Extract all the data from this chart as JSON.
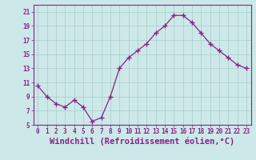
{
  "x": [
    0,
    1,
    2,
    3,
    4,
    5,
    6,
    7,
    8,
    9,
    10,
    11,
    12,
    13,
    14,
    15,
    16,
    17,
    18,
    19,
    20,
    21,
    22,
    23
  ],
  "y": [
    10.5,
    9.0,
    8.0,
    7.5,
    8.5,
    7.5,
    5.5,
    6.0,
    9.0,
    13.0,
    14.5,
    15.5,
    16.5,
    18.0,
    19.0,
    20.5,
    20.5,
    19.5,
    18.0,
    16.5,
    15.5,
    14.5,
    13.5,
    13.0
  ],
  "line_color": "#882288",
  "marker": "+",
  "marker_size": 4,
  "marker_linewidth": 1.0,
  "xlabel": "Windchill (Refroidissement éolien,°C)",
  "bg_color": "#cce8e8",
  "grid_color": "#aacccc",
  "xlim": [
    -0.5,
    23.5
  ],
  "ylim": [
    5,
    22
  ],
  "yticks": [
    5,
    7,
    9,
    11,
    13,
    15,
    17,
    19,
    21
  ],
  "xticks": [
    0,
    1,
    2,
    3,
    4,
    5,
    6,
    7,
    8,
    9,
    10,
    11,
    12,
    13,
    14,
    15,
    16,
    17,
    18,
    19,
    20,
    21,
    22,
    23
  ],
  "tick_color": "#882288",
  "spine_color": "#882288",
  "tick_fontsize": 5.5,
  "xlabel_fontsize": 7.5
}
